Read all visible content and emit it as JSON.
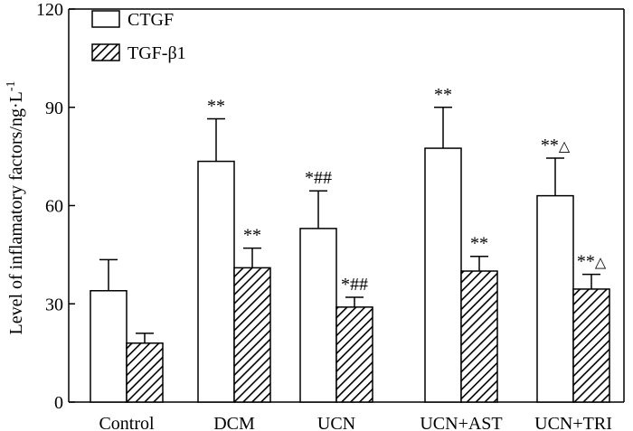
{
  "chart_data": {
    "type": "bar",
    "ylabel": "Level of inflamatory factors/ng·L",
    "ylabel_superscript": "-1",
    "ylim": [
      0,
      120
    ],
    "yticks": [
      0,
      30,
      60,
      90,
      120
    ],
    "categories": [
      "Control",
      "DCM",
      "UCN",
      "UCN+AST",
      "UCN+TRI"
    ],
    "series": [
      {
        "name": "CTGF",
        "fill": "white",
        "values": [
          34,
          73.5,
          53,
          77.5,
          63
        ],
        "errors": [
          9.5,
          13,
          11.5,
          12.5,
          11.5
        ],
        "annotations": [
          {
            "text": "",
            "sym": ""
          },
          {
            "text": "**",
            "sym": ""
          },
          {
            "text": "*##",
            "sym": ""
          },
          {
            "text": "**",
            "sym": ""
          },
          {
            "text": "**",
            "sym": "△"
          }
        ]
      },
      {
        "name": "TGF-β1",
        "fill": "hatched",
        "values": [
          18,
          41,
          29,
          40,
          34.5
        ],
        "errors": [
          3,
          6,
          3,
          4.5,
          4.5
        ],
        "annotations": [
          {
            "text": "",
            "sym": ""
          },
          {
            "text": "**",
            "sym": ""
          },
          {
            "text": "*##",
            "sym": ""
          },
          {
            "text": "**",
            "sym": ""
          },
          {
            "text": "**",
            "sym": "△"
          }
        ]
      }
    ],
    "legend_position": "top-left",
    "grid": false,
    "colors": {
      "stroke": "#000000",
      "background": "#ffffff"
    }
  }
}
